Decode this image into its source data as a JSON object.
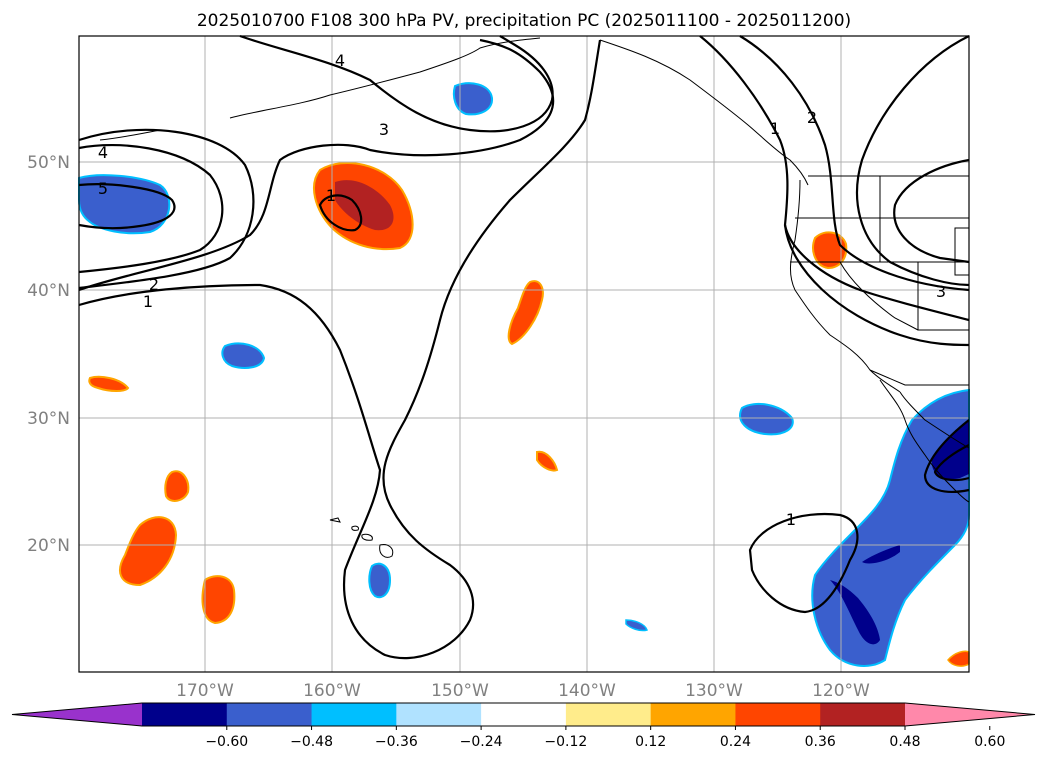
{
  "title": "2025010700 F108 300 hPa PV, precipitation PC (2025011100 - 2025011200)",
  "lat_labels": [
    "50°N",
    "40°N",
    "30°N",
    "20°N"
  ],
  "lon_labels": [
    "170°W",
    "160°W",
    "150°W",
    "140°W",
    "130°W",
    "120°W"
  ],
  "colorbar": {
    "ticks": [
      "−0.60",
      "−0.48",
      "−0.36",
      "−0.24",
      "−0.12",
      "0.12",
      "0.24",
      "0.36",
      "0.48",
      "0.60"
    ],
    "colors": [
      "#9932cc",
      "#00008b",
      "#3a5fcd",
      "#00bfff",
      "#b0e2ff",
      "#ffffff",
      "#ffec8b",
      "#ffa500",
      "#ff4500",
      "#b22222",
      "#ff88aa"
    ]
  },
  "contour_labels": [
    "4",
    "5",
    "3",
    "2",
    "1",
    "1",
    "1",
    "2",
    "4",
    "3",
    "1"
  ],
  "colors": {
    "blue": "#3a5fcd",
    "dark_blue": "#00008b",
    "cyan": "#00bfff",
    "red_orange": "#ff4500",
    "dark_red": "#b22222",
    "orange": "#ffa500",
    "yellow": "#ffec8b"
  }
}
